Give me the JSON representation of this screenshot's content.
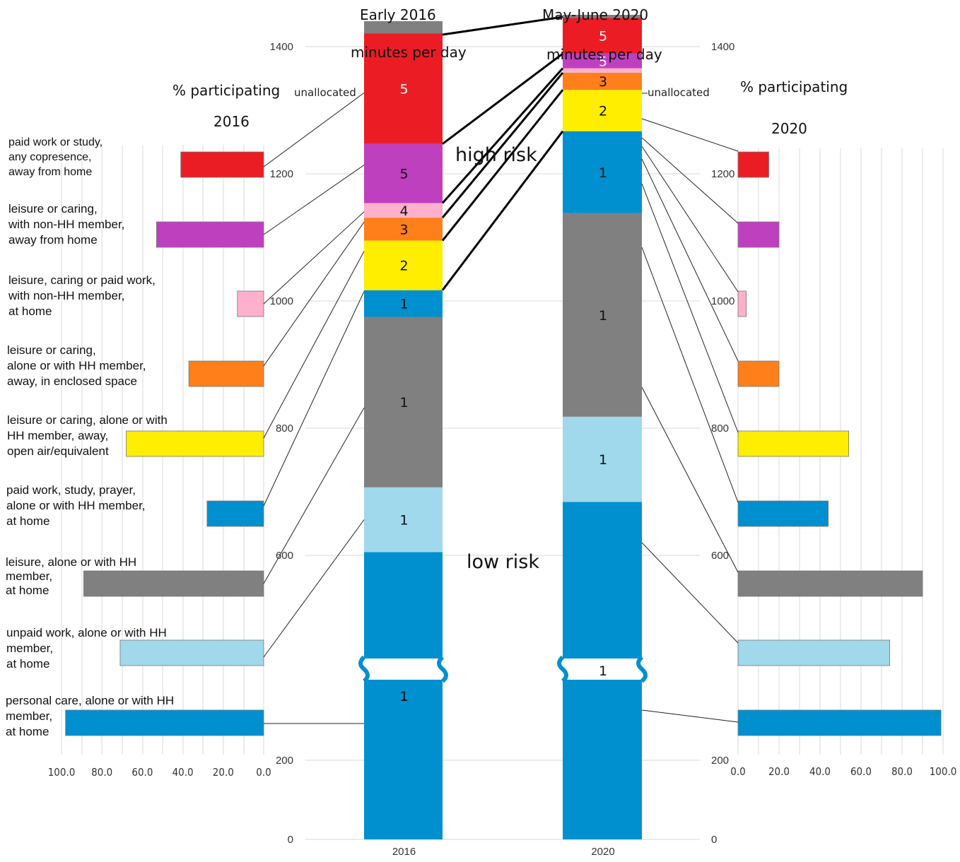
{
  "headers": {
    "left_period": "Early 2016",
    "left_unit": "minutes per day",
    "right_period": "May-June 2020",
    "right_unit": "minutes per day",
    "left_participation": "% participating",
    "left_participation_year": "2016",
    "right_participation": "% participating",
    "right_participation_year": "2020",
    "unallocated": "unallocated",
    "high_risk": "high risk",
    "low_risk": "low risk"
  },
  "categories": [
    {
      "label": "paid work or study,\nany copresence,\naway from home",
      "color": "#ec1c24",
      "risk": 5,
      "pct2016": 41,
      "pct2020": 15,
      "min2016": 174,
      "min2020": 56
    },
    {
      "label": "leisure or caring,\nwith non-HH member,\naway from home",
      "color": "#bf40bf",
      "risk": 5,
      "pct2016": 53,
      "pct2020": 20,
      "min2016": 93,
      "min2020": 23
    },
    {
      "label": "leisure, caring or paid work,\nwith non-HH member,\nat home",
      "color": "#ffb0cc",
      "risk": 4,
      "pct2016": 13,
      "pct2020": 4,
      "min2016": 23,
      "min2020": 7
    },
    {
      "label": "leisure or caring,\nalone or with HH member,\naway, in enclosed space",
      "color": "#ff7f1a",
      "risk": 3,
      "pct2016": 37,
      "pct2020": 20,
      "min2016": 36,
      "min2020": 27
    },
    {
      "label": "leisure or caring, alone or with\nHH member, away,\nopen air/equivalent",
      "color": "#ffee00",
      "risk": 2,
      "pct2016": 68,
      "pct2020": 54,
      "min2016": 78,
      "min2020": 65
    },
    {
      "label": "paid work, study, prayer,\nalone or with HH member,\nat home",
      "color": "#0090cf",
      "risk": 1,
      "pct2016": 28,
      "pct2020": 44,
      "min2016": 42,
      "min2020": 129
    },
    {
      "label": "leisure, alone or with HH\nmember,\nat home",
      "color": "#808080",
      "risk": 1,
      "pct2016": 89,
      "pct2020": 90,
      "min2016": 268,
      "min2020": 320
    },
    {
      "label": "unpaid work, alone or with HH\nmember,\nat home",
      "color": "#a0d8ec",
      "risk": 1,
      "pct2016": 71,
      "pct2020": 74,
      "min2016": 102,
      "min2020": 134
    },
    {
      "label": "personal care, alone or with HH\nmember,\nat home",
      "color": "#0090cf",
      "risk": 1,
      "pct2016": 98,
      "pct2020": 99,
      "min2016": 605,
      "min2020": 684
    }
  ],
  "unallocated_color": "#808080",
  "chart_data": [
    {
      "type": "bar",
      "orientation": "horizontal",
      "title": "% participating 2016",
      "xlim": [
        100,
        0
      ],
      "x_ticks": [
        "100.0",
        "80.0",
        "60.0",
        "40.0",
        "20.0",
        "0.0"
      ],
      "categories": [
        "paid work or study, any copresence, away from home",
        "leisure or caring, with non-HH member, away from home",
        "leisure, caring or paid work, with non-HH member, at home",
        "leisure or caring, alone or with HH member, away, in enclosed space",
        "leisure or caring, alone or with HH member, away, open air/equivalent",
        "paid work, study, prayer, alone or with HH member, at home",
        "leisure, alone or with HH member, at home",
        "unpaid work, alone or with HH member, at home",
        "personal care, alone or with HH member, at home"
      ],
      "values": [
        41,
        53,
        13,
        37,
        68,
        28,
        89,
        71,
        98
      ]
    },
    {
      "type": "bar",
      "orientation": "stacked",
      "categories": [
        "2016",
        "2020"
      ],
      "ylabel": "minutes per day",
      "y_ticks_left": [
        "0",
        "200",
        "600",
        "800",
        "1000",
        "1200",
        "1400"
      ],
      "y_ticks_right": [
        "0",
        "200",
        "600",
        "800",
        "1000",
        "1200",
        "1400"
      ],
      "axis_break": true,
      "ylim": [
        0,
        1440
      ],
      "series": [
        {
          "values": [
            605,
            684
          ]
        },
        {
          "values": [
            102,
            134
          ]
        },
        {
          "values": [
            268,
            320
          ]
        },
        {
          "values": [
            42,
            129
          ]
        },
        {
          "values": [
            78,
            65
          ]
        },
        {
          "values": [
            36,
            27
          ]
        },
        {
          "values": [
            23,
            7
          ]
        },
        {
          "values": [
            93,
            23
          ]
        },
        {
          "values": [
            174,
            56
          ]
        },
        {
          "name": "unallocated",
          "values": [
            19,
            5
          ]
        }
      ],
      "risk_labels_2016": [
        "1",
        "1",
        "1",
        "1",
        "2",
        "3",
        "4",
        "5",
        "5"
      ],
      "risk_labels_2020": [
        "1",
        "1",
        "1",
        "1",
        "2",
        "3",
        "",
        "5",
        "5"
      ],
      "annotations": [
        "high risk",
        "low risk"
      ]
    },
    {
      "type": "bar",
      "orientation": "horizontal",
      "title": "% participating 2020",
      "xlim": [
        0,
        100
      ],
      "x_ticks": [
        "0.0",
        "20.0",
        "40.0",
        "60.0",
        "80.0",
        "100.0"
      ],
      "categories": [
        "paid work or study, any copresence, away from home",
        "leisure or caring, with non-HH member, away from home",
        "leisure, caring or paid work, with non-HH member, at home",
        "leisure or caring, alone or with HH member, away, in enclosed space",
        "leisure or caring, alone or with HH member, away, open air/equivalent",
        "paid work, study, prayer, alone or with HH member, at home",
        "leisure, alone or with HH member, at home",
        "unpaid work, alone or with HH member, at home",
        "personal care, alone or with HH member, at home"
      ],
      "values": [
        15,
        20,
        4,
        20,
        54,
        44,
        90,
        74,
        99
      ]
    }
  ]
}
